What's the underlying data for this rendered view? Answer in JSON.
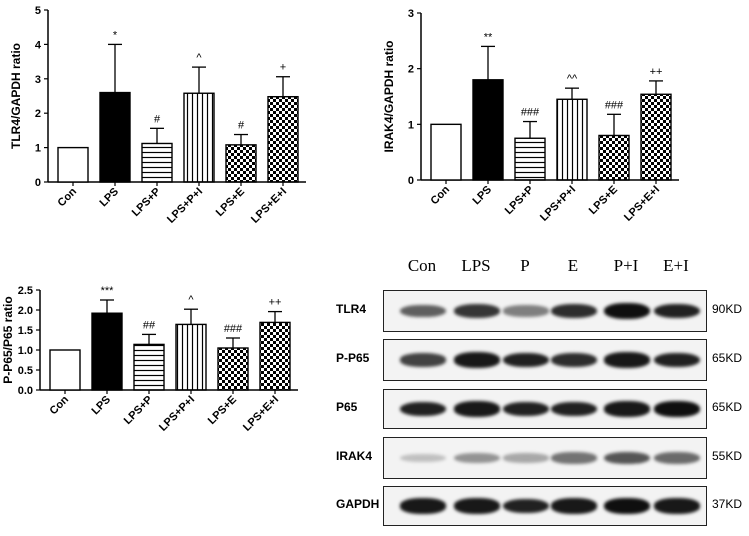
{
  "chart_data": [
    {
      "type": "bar",
      "categories": [
        "Con",
        "LPS",
        "LPS+P",
        "LPS+P+I",
        "LPS+E",
        "LPS+E+I"
      ],
      "values": [
        1.0,
        2.6,
        1.12,
        2.58,
        1.08,
        2.48
      ],
      "errors": [
        0,
        1.4,
        0.44,
        0.76,
        0.3,
        0.58
      ],
      "significance": [
        "",
        "*",
        "#",
        "^",
        "#",
        "+"
      ],
      "ylabel": "TLR4/GAPDH ratio",
      "ylim": [
        0,
        5
      ],
      "yticks": [
        "0",
        "1",
        "2",
        "3",
        "4",
        "5"
      ]
    },
    {
      "type": "bar",
      "categories": [
        "Con",
        "LPS",
        "LPS+P",
        "LPS+P+I",
        "LPS+E",
        "LPS+E+I"
      ],
      "values": [
        1.0,
        1.8,
        0.75,
        1.45,
        0.8,
        1.54
      ],
      "errors": [
        0,
        0.6,
        0.3,
        0.2,
        0.38,
        0.24
      ],
      "significance": [
        "",
        "**",
        "###",
        "^^",
        "###",
        "++"
      ],
      "ylabel": "IRAK4/GAPDH ratio",
      "ylim": [
        0,
        3
      ],
      "yticks": [
        "0",
        "1",
        "2",
        "3"
      ]
    },
    {
      "type": "bar",
      "categories": [
        "Con",
        "LPS",
        "LPS+P",
        "LPS+P+I",
        "LPS+E",
        "LPS+E+I"
      ],
      "values": [
        1.0,
        1.92,
        1.14,
        1.64,
        1.05,
        1.69
      ],
      "errors": [
        0,
        0.33,
        0.25,
        0.38,
        0.25,
        0.27
      ],
      "significance": [
        "",
        "***",
        "##",
        "^",
        "###",
        "++"
      ],
      "ylabel": "P-P65/P65 ratio",
      "ylim": [
        0,
        2.5
      ],
      "yticks": [
        "0.0",
        "0.5",
        "1.0",
        "1.5",
        "2.0",
        "2.5"
      ]
    }
  ],
  "western_blot": {
    "lanes": [
      "Con",
      "LPS",
      "P",
      "E",
      "P+I",
      "E+I"
    ],
    "rows": [
      {
        "protein": "TLR4",
        "kd": "90KD",
        "intensity": [
          0.55,
          0.75,
          0.4,
          0.8,
          1.0,
          0.85
        ]
      },
      {
        "protein": "P-P65",
        "kd": "65KD",
        "intensity": [
          0.7,
          0.9,
          0.85,
          0.8,
          0.9,
          0.85
        ]
      },
      {
        "protein": "P65",
        "kd": "65KD",
        "intensity": [
          0.85,
          0.9,
          0.85,
          0.85,
          0.9,
          0.95
        ]
      },
      {
        "protein": "IRAK4",
        "kd": "55KD",
        "intensity": [
          0.08,
          0.3,
          0.2,
          0.45,
          0.6,
          0.5
        ]
      },
      {
        "protein": "GAPDH",
        "kd": "37KD",
        "intensity": [
          0.9,
          0.9,
          0.85,
          0.9,
          0.95,
          0.9
        ]
      }
    ]
  }
}
